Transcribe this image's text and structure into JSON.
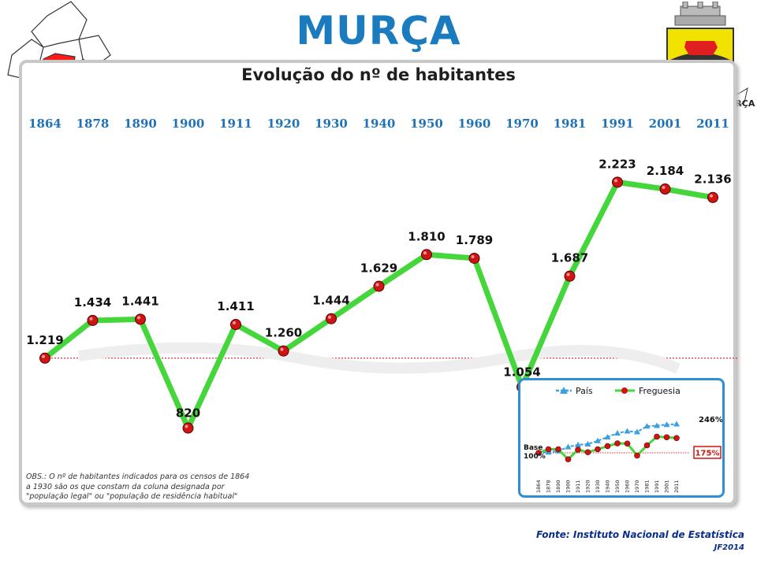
{
  "header": {
    "title": "MURÇA",
    "subtitle": "Evolução do nº de habitantes",
    "crest_text": "FREGUESIA DE MURÇA"
  },
  "footer": {
    "obs": "OBS.: O nº de habitantes indicados para os censos de 1864 a 1930 são os que constam da coluna designada por \"população legal\" ou \"população de residência habitual\"",
    "fonte": "Fonte: Instituto Nacional de Estatística",
    "credit": "JF2014"
  },
  "colors": {
    "title": "#1a7bbf",
    "years": "#1f72b8",
    "line": "#44d63a",
    "marker": "#d01414",
    "reference": "#e03030",
    "pais": "#3aa0e0"
  },
  "chart_data": [
    {
      "type": "line",
      "categories": [
        "1864",
        "1878",
        "1890",
        "1900",
        "1911",
        "1920",
        "1930",
        "1940",
        "1950",
        "1960",
        "1970",
        "1981",
        "1991",
        "2001",
        "2011"
      ],
      "series": [
        {
          "name": "",
          "values": [
            1219,
            1434,
            1441,
            820,
            1411,
            1260,
            1444,
            1629,
            1810,
            1789,
            1054,
            1687,
            2223,
            2184,
            2136
          ]
        }
      ],
      "labels": [
        "1.219",
        "1.434",
        "1.441",
        "820",
        "1.411",
        "1.260",
        "1.444",
        "1.629",
        "1.810",
        "1.789",
        "1.054",
        "1.687",
        "2.223",
        "2.184",
        "2.136"
      ],
      "reference_line": 1219,
      "ylim": [
        500,
        2500
      ],
      "grid": false
    },
    {
      "type": "line",
      "categories": [
        "1864",
        "1878",
        "1890",
        "1900",
        "1911",
        "1920",
        "1930",
        "1940",
        "1950",
        "1960",
        "1970",
        "1981",
        "1991",
        "2001",
        "2011"
      ],
      "series": [
        {
          "name": "País",
          "values": [
            100,
            103,
            109,
            130,
            141,
            144,
            161,
            180,
            200,
            210,
            206,
            235,
            238,
            243,
            246
          ]
        },
        {
          "name": "Freguesia",
          "values": [
            100,
            118,
            118,
            67,
            116,
            103,
            118,
            134,
            148,
            147,
            86,
            138,
            182,
            179,
            175
          ]
        }
      ],
      "base_label": "Base 100%",
      "end_labels": [
        "246%",
        "175%"
      ],
      "ylim": [
        50,
        270
      ],
      "legend": "top"
    }
  ]
}
